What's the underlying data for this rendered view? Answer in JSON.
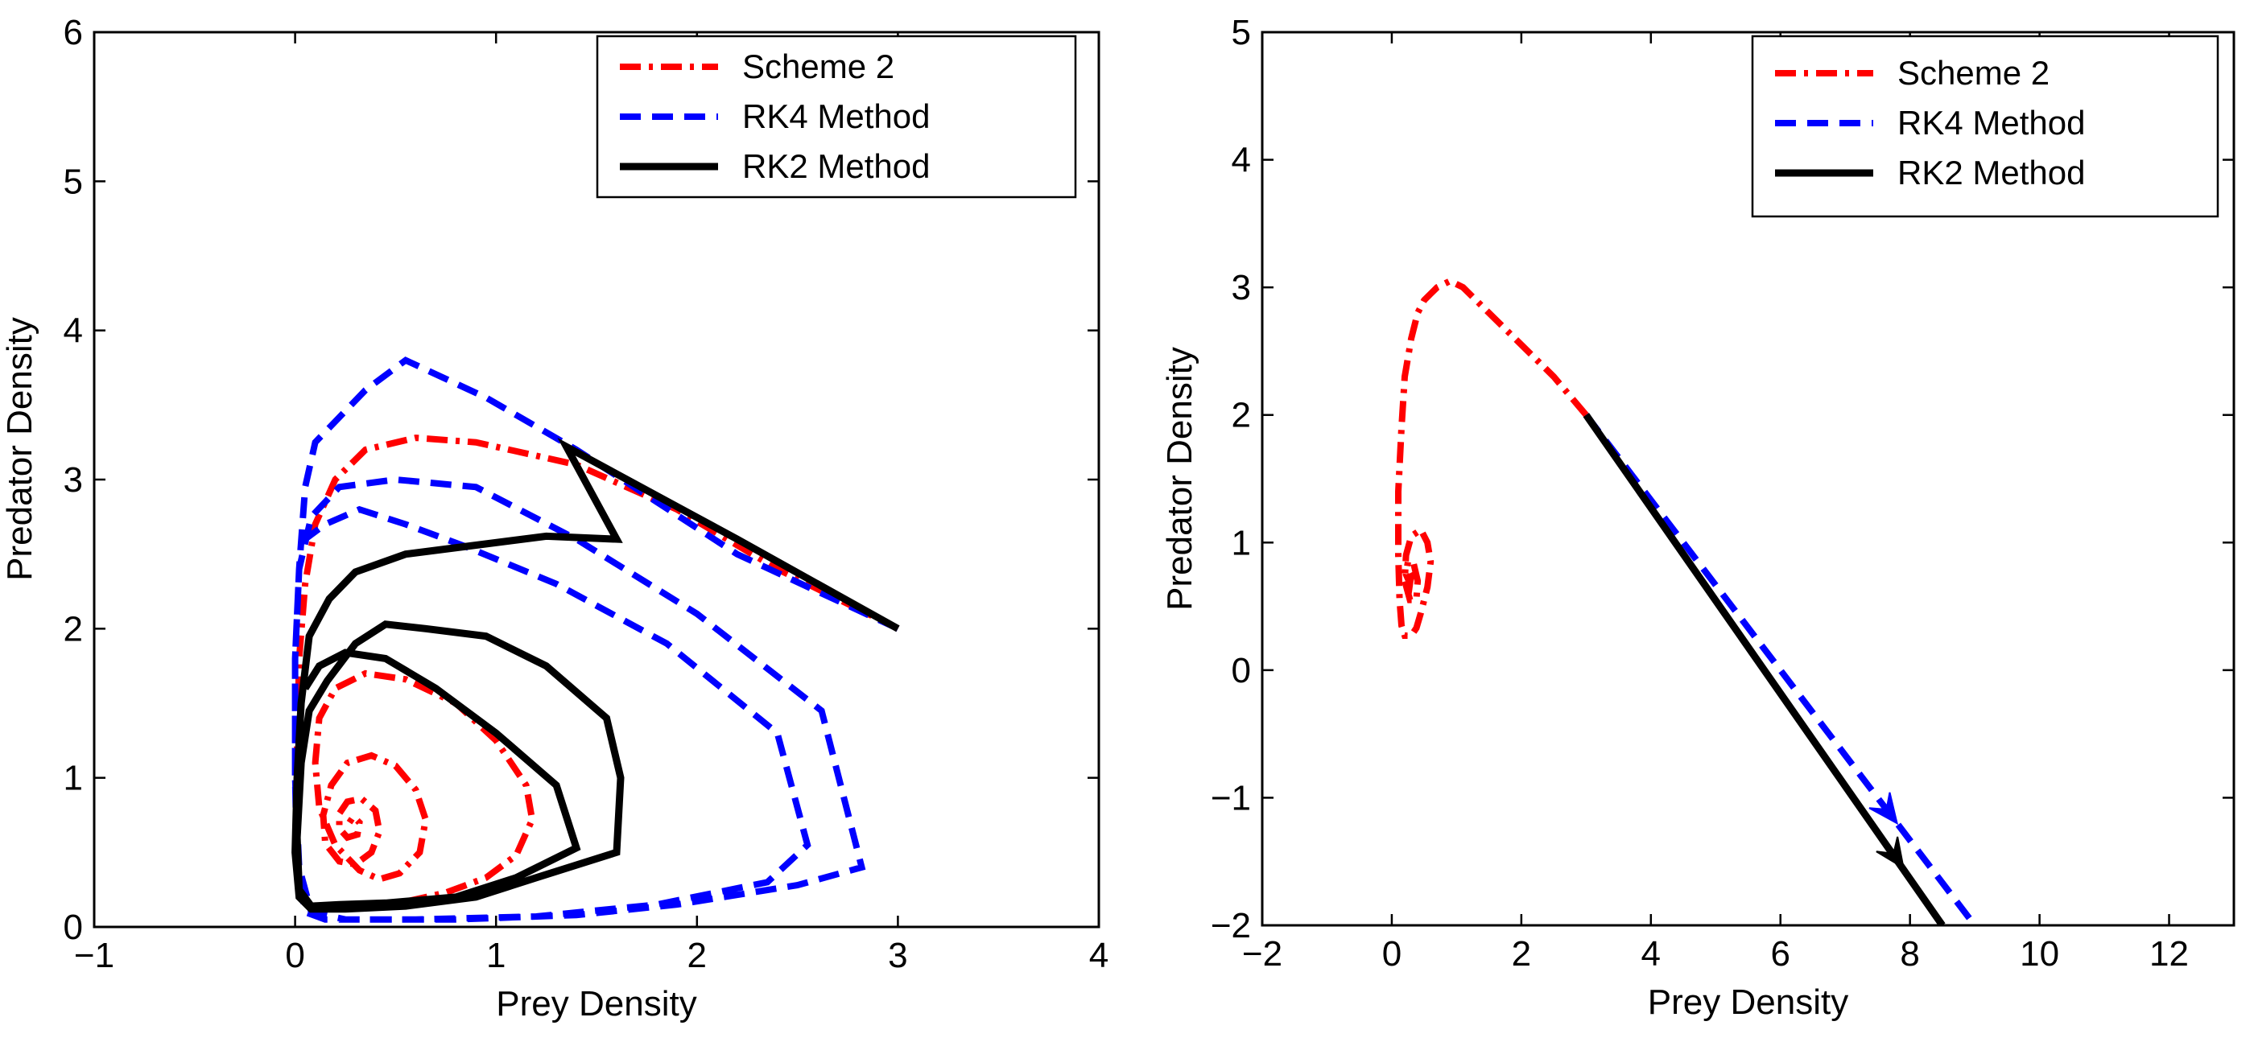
{
  "chart_data": [
    {
      "type": "line",
      "title": "",
      "xlabel": "Prey Density",
      "ylabel": "Predator Density",
      "xlim": [
        -1,
        4
      ],
      "ylim": [
        0,
        6
      ],
      "xticks": [
        "−1",
        "0",
        "1",
        "2",
        "3",
        "4"
      ],
      "yticks": [
        "0",
        "1",
        "2",
        "3",
        "4",
        "5",
        "6"
      ],
      "xtick_values": [
        -1,
        0,
        1,
        2,
        3,
        4
      ],
      "ytick_values": [
        0,
        1,
        2,
        3,
        4,
        5,
        6
      ],
      "legend_position": "top-right",
      "legend": [
        "Scheme 2",
        "RK4 Method",
        "RK2 Method"
      ],
      "series": [
        {
          "name": "Scheme 2",
          "color": "#ff0000",
          "style": "dash-dot",
          "x": [
            3.0,
            2.4,
            1.9,
            1.4,
            0.9,
            0.6,
            0.35,
            0.2,
            0.1,
            0.05,
            0.02,
            0.01,
            0.01,
            0.02,
            0.05,
            0.1,
            0.2,
            0.35,
            0.55,
            0.75,
            0.95,
            1.1,
            1.18,
            1.15,
            1.0,
            0.8,
            0.55,
            0.35,
            0.2,
            0.12,
            0.1,
            0.12,
            0.2,
            0.32,
            0.42,
            0.52,
            0.62,
            0.65,
            0.6,
            0.5,
            0.38,
            0.26,
            0.18,
            0.14,
            0.15,
            0.22,
            0.3,
            0.38,
            0.42,
            0.4,
            0.33,
            0.26,
            0.22,
            0.22,
            0.26,
            0.31,
            0.32,
            0.29,
            0.27
          ],
          "y": [
            2.0,
            2.4,
            2.8,
            3.1,
            3.25,
            3.28,
            3.2,
            3.0,
            2.7,
            2.3,
            1.8,
            1.2,
            0.6,
            0.3,
            0.18,
            0.14,
            0.13,
            0.14,
            0.17,
            0.23,
            0.33,
            0.48,
            0.72,
            0.95,
            1.25,
            1.5,
            1.66,
            1.7,
            1.6,
            1.4,
            1.1,
            0.8,
            0.55,
            0.38,
            0.32,
            0.36,
            0.5,
            0.72,
            0.92,
            1.08,
            1.15,
            1.1,
            0.95,
            0.75,
            0.56,
            0.44,
            0.42,
            0.5,
            0.64,
            0.78,
            0.86,
            0.84,
            0.76,
            0.66,
            0.6,
            0.62,
            0.7,
            0.74,
            0.7
          ]
        },
        {
          "name": "RK4 Method",
          "color": "#0000ff",
          "style": "dashed",
          "x": [
            3.0,
            2.2,
            1.4,
            0.95,
            0.55,
            0.35,
            0.1,
            0.05,
            0.02,
            0.0,
            0.0,
            0.01,
            0.05,
            0.15,
            0.35,
            0.8,
            1.4,
            1.9,
            2.5,
            2.82,
            2.62,
            2.0,
            1.4,
            0.9,
            0.5,
            0.22,
            0.08,
            0.02,
            0.0,
            0.0,
            0.02,
            0.08,
            0.25,
            0.6,
            1.2,
            1.8,
            2.35,
            2.55,
            2.4,
            1.85,
            1.3,
            0.85,
            0.55,
            0.32,
            0.15,
            0.05
          ],
          "y": [
            2.0,
            2.5,
            3.2,
            3.55,
            3.8,
            3.6,
            3.25,
            2.95,
            2.4,
            1.8,
            1.0,
            0.4,
            0.1,
            0.05,
            0.05,
            0.05,
            0.08,
            0.15,
            0.28,
            0.4,
            1.45,
            2.1,
            2.6,
            2.95,
            3.0,
            2.95,
            2.75,
            2.4,
            1.8,
            1.0,
            0.4,
            0.1,
            0.05,
            0.05,
            0.07,
            0.15,
            0.3,
            0.55,
            1.3,
            1.9,
            2.3,
            2.55,
            2.7,
            2.8,
            2.7,
            2.6
          ]
        },
        {
          "name": "RK2 Method",
          "color": "#000000",
          "style": "solid",
          "x": [
            3.0,
            2.2,
            1.35,
            1.6,
            1.25,
            0.55,
            0.3,
            0.17,
            0.07,
            0.03,
            0.01,
            0.0,
            0.02,
            0.08,
            0.25,
            0.55,
            0.9,
            1.2,
            1.6,
            1.62,
            1.55,
            1.25,
            0.95,
            0.65,
            0.45,
            0.3,
            0.16,
            0.07,
            0.03,
            0.01,
            0.02,
            0.08,
            0.22,
            0.45,
            0.8,
            1.1,
            1.4,
            1.3,
            1.0,
            0.7,
            0.45,
            0.25,
            0.12,
            0.05
          ],
          "y": [
            2.0,
            2.6,
            3.22,
            2.6,
            2.62,
            2.5,
            2.38,
            2.2,
            1.95,
            1.5,
            1.0,
            0.5,
            0.2,
            0.12,
            0.12,
            0.14,
            0.2,
            0.33,
            0.5,
            1.0,
            1.4,
            1.75,
            1.95,
            2.0,
            2.03,
            1.9,
            1.65,
            1.45,
            1.1,
            0.6,
            0.25,
            0.14,
            0.15,
            0.16,
            0.2,
            0.33,
            0.53,
            0.95,
            1.3,
            1.6,
            1.8,
            1.84,
            1.75,
            1.6
          ]
        }
      ]
    },
    {
      "type": "line",
      "title": "",
      "xlabel": "Prey Density",
      "ylabel": "Predator Density",
      "xlim": [
        -2,
        13
      ],
      "ylim": [
        -2,
        5
      ],
      "xticks": [
        "−2",
        "0",
        "2",
        "4",
        "6",
        "8",
        "10",
        "12"
      ],
      "yticks": [
        "−2",
        "−1",
        "0",
        "1",
        "2",
        "3",
        "4",
        "5"
      ],
      "xtick_values": [
        -2,
        0,
        2,
        4,
        6,
        8,
        10,
        12
      ],
      "ytick_values": [
        -2,
        -1,
        0,
        1,
        2,
        3,
        4,
        5
      ],
      "legend_position": "top-right",
      "legend": [
        "Scheme 2",
        "RK4 Method",
        "RK2 Method"
      ],
      "series": [
        {
          "name": "Scheme 2",
          "color": "#ff0000",
          "style": "dash-dot",
          "x": [
            3.0,
            2.5,
            2.0,
            1.5,
            1.1,
            0.9,
            0.7,
            0.5,
            0.4,
            0.3,
            0.2,
            0.15,
            0.1,
            0.1,
            0.12,
            0.15,
            0.2,
            0.3,
            0.38,
            0.45,
            0.55,
            0.6,
            0.55,
            0.45,
            0.3,
            0.22,
            0.2,
            0.28,
            0.38,
            0.4,
            0.33,
            0.25,
            0.22,
            0.28,
            0.3,
            0.25
          ],
          "y": [
            2.0,
            2.3,
            2.55,
            2.8,
            3.0,
            3.05,
            3.0,
            2.9,
            2.8,
            2.6,
            2.3,
            1.9,
            1.4,
            0.9,
            0.55,
            0.35,
            0.27,
            0.27,
            0.33,
            0.45,
            0.65,
            0.85,
            1.0,
            1.1,
            1.05,
            0.9,
            0.7,
            0.55,
            0.55,
            0.7,
            0.85,
            0.85,
            0.75,
            0.68,
            0.75,
            0.8
          ]
        },
        {
          "name": "RK4 Method",
          "color": "#0000ff",
          "style": "dashed",
          "x": [
            3.0,
            9.0
          ],
          "y": [
            2.0,
            -2.0
          ],
          "arrow_at": [
            7.8,
            -1.2
          ]
        },
        {
          "name": "RK2 Method",
          "color": "#000000",
          "style": "solid",
          "x": [
            3.0,
            8.5
          ],
          "y": [
            2.0,
            -2.0
          ],
          "arrow_at": [
            7.9,
            -1.55
          ]
        }
      ]
    }
  ]
}
